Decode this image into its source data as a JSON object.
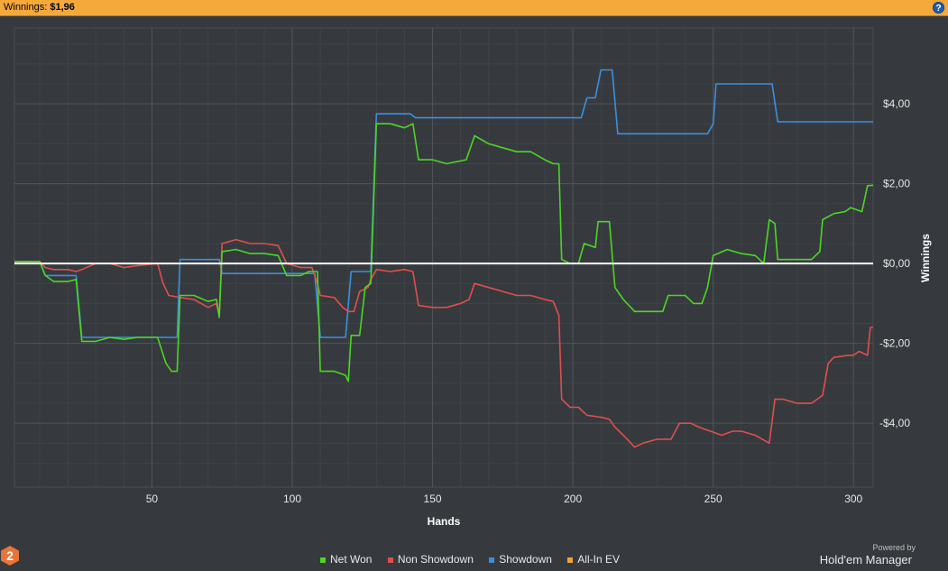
{
  "header": {
    "label": "Winnings:",
    "value": "$1,96",
    "help_glyph": "?"
  },
  "branding": {
    "powered_by": "Powered by",
    "product": "Hold'em Manager",
    "logo_digit": "2"
  },
  "colors": {
    "net_won": "#4cd624",
    "non_showdown": "#df4f4c",
    "showdown": "#3d8fdc",
    "all_in_ev": "#f0a23c",
    "background": "#363a3e",
    "grid": "#4a4e52",
    "zero_line": "#ffffff"
  },
  "chart_data": {
    "type": "line",
    "xlabel": "Hands",
    "ylabel": "Winnings",
    "xlim": [
      1,
      307
    ],
    "ylim": [
      -5.6,
      5.9
    ],
    "xticks": [
      50,
      100,
      150,
      200,
      250,
      300
    ],
    "xtick_labels": [
      "50",
      "100",
      "150",
      "200",
      "250",
      "300"
    ],
    "yticks": [
      4,
      2,
      0,
      -2,
      -4
    ],
    "ytick_labels": [
      "$4,00",
      "$2,00",
      "$0,00",
      "-$2,00",
      "-$4,00"
    ],
    "legend_position": "bottom-center",
    "grid": true,
    "series": [
      {
        "name": "Net Won",
        "color": "#4cd624",
        "points": [
          [
            1,
            0.05
          ],
          [
            10,
            0.05
          ],
          [
            12,
            -0.3
          ],
          [
            15,
            -0.45
          ],
          [
            20,
            -0.45
          ],
          [
            23,
            -0.4
          ],
          [
            25,
            -1.95
          ],
          [
            30,
            -1.95
          ],
          [
            35,
            -1.85
          ],
          [
            40,
            -1.9
          ],
          [
            45,
            -1.85
          ],
          [
            52,
            -1.85
          ],
          [
            55,
            -2.5
          ],
          [
            57,
            -2.7
          ],
          [
            59,
            -2.7
          ],
          [
            60,
            -0.8
          ],
          [
            65,
            -0.8
          ],
          [
            70,
            -0.95
          ],
          [
            73,
            -0.9
          ],
          [
            74,
            -1.35
          ],
          [
            75,
            0.3
          ],
          [
            80,
            0.35
          ],
          [
            85,
            0.25
          ],
          [
            90,
            0.25
          ],
          [
            95,
            0.2
          ],
          [
            98,
            -0.3
          ],
          [
            103,
            -0.3
          ],
          [
            106,
            -0.2
          ],
          [
            109,
            -0.2
          ],
          [
            110,
            -2.7
          ],
          [
            115,
            -2.7
          ],
          [
            119,
            -2.8
          ],
          [
            120,
            -2.95
          ],
          [
            121,
            -1.8
          ],
          [
            124,
            -1.8
          ],
          [
            126,
            -0.6
          ],
          [
            128,
            -0.5
          ],
          [
            130,
            3.5
          ],
          [
            135,
            3.5
          ],
          [
            140,
            3.4
          ],
          [
            143,
            3.5
          ],
          [
            145,
            2.6
          ],
          [
            150,
            2.6
          ],
          [
            155,
            2.5
          ],
          [
            162,
            2.6
          ],
          [
            165,
            3.2
          ],
          [
            170,
            3.0
          ],
          [
            175,
            2.9
          ],
          [
            180,
            2.8
          ],
          [
            185,
            2.8
          ],
          [
            190,
            2.6
          ],
          [
            193,
            2.5
          ],
          [
            195,
            2.5
          ],
          [
            196,
            0.1
          ],
          [
            199,
            0.0
          ],
          [
            202,
            0.0
          ],
          [
            204,
            0.5
          ],
          [
            208,
            0.4
          ],
          [
            209,
            1.05
          ],
          [
            213,
            1.05
          ],
          [
            215,
            -0.6
          ],
          [
            218,
            -0.9
          ],
          [
            222,
            -1.2
          ],
          [
            225,
            -1.2
          ],
          [
            228,
            -1.2
          ],
          [
            232,
            -1.2
          ],
          [
            234,
            -0.8
          ],
          [
            240,
            -0.8
          ],
          [
            243,
            -1.0
          ],
          [
            246,
            -1.0
          ],
          [
            248,
            -0.6
          ],
          [
            250,
            0.2
          ],
          [
            255,
            0.35
          ],
          [
            260,
            0.25
          ],
          [
            265,
            0.2
          ],
          [
            268,
            0.0
          ],
          [
            270,
            1.1
          ],
          [
            272,
            1.0
          ],
          [
            273,
            0.1
          ],
          [
            278,
            0.1
          ],
          [
            285,
            0.1
          ],
          [
            288,
            0.3
          ],
          [
            289,
            1.1
          ],
          [
            293,
            1.25
          ],
          [
            297,
            1.3
          ],
          [
            299,
            1.4
          ],
          [
            303,
            1.3
          ],
          [
            305,
            1.95
          ],
          [
            307,
            1.96
          ]
        ]
      },
      {
        "name": "Non Showdown",
        "color": "#df4f4c",
        "points": [
          [
            1,
            0.05
          ],
          [
            10,
            0.05
          ],
          [
            12,
            -0.1
          ],
          [
            15,
            -0.15
          ],
          [
            20,
            -0.15
          ],
          [
            23,
            -0.2
          ],
          [
            25,
            -0.15
          ],
          [
            30,
            0.0
          ],
          [
            35,
            0.0
          ],
          [
            40,
            -0.1
          ],
          [
            45,
            -0.05
          ],
          [
            52,
            0.0
          ],
          [
            54,
            -0.5
          ],
          [
            56,
            -0.8
          ],
          [
            60,
            -0.85
          ],
          [
            65,
            -0.9
          ],
          [
            70,
            -1.1
          ],
          [
            73,
            -1.0
          ],
          [
            74,
            -1.3
          ],
          [
            75,
            0.5
          ],
          [
            80,
            0.6
          ],
          [
            85,
            0.5
          ],
          [
            90,
            0.5
          ],
          [
            95,
            0.45
          ],
          [
            98,
            0.0
          ],
          [
            103,
            -0.1
          ],
          [
            107,
            -0.1
          ],
          [
            109,
            -0.5
          ],
          [
            110,
            -0.8
          ],
          [
            115,
            -0.85
          ],
          [
            118,
            -1.1
          ],
          [
            120,
            -1.2
          ],
          [
            122,
            -1.2
          ],
          [
            124,
            -0.7
          ],
          [
            127,
            -0.6
          ],
          [
            128,
            -0.4
          ],
          [
            130,
            -0.15
          ],
          [
            135,
            -0.2
          ],
          [
            140,
            -0.15
          ],
          [
            143,
            -0.2
          ],
          [
            145,
            -1.05
          ],
          [
            150,
            -1.1
          ],
          [
            155,
            -1.1
          ],
          [
            160,
            -1.0
          ],
          [
            163,
            -0.9
          ],
          [
            165,
            -0.5
          ],
          [
            170,
            -0.6
          ],
          [
            175,
            -0.7
          ],
          [
            180,
            -0.8
          ],
          [
            185,
            -0.8
          ],
          [
            190,
            -0.9
          ],
          [
            193,
            -0.95
          ],
          [
            195,
            -1.3
          ],
          [
            196,
            -3.4
          ],
          [
            199,
            -3.6
          ],
          [
            202,
            -3.6
          ],
          [
            205,
            -3.8
          ],
          [
            210,
            -3.85
          ],
          [
            213,
            -3.9
          ],
          [
            215,
            -4.1
          ],
          [
            218,
            -4.3
          ],
          [
            222,
            -4.6
          ],
          [
            225,
            -4.5
          ],
          [
            230,
            -4.4
          ],
          [
            235,
            -4.4
          ],
          [
            238,
            -4.0
          ],
          [
            242,
            -4.0
          ],
          [
            245,
            -4.1
          ],
          [
            249,
            -4.2
          ],
          [
            253,
            -4.3
          ],
          [
            257,
            -4.2
          ],
          [
            260,
            -4.2
          ],
          [
            265,
            -4.3
          ],
          [
            270,
            -4.5
          ],
          [
            272,
            -3.4
          ],
          [
            275,
            -3.4
          ],
          [
            280,
            -3.5
          ],
          [
            285,
            -3.5
          ],
          [
            289,
            -3.3
          ],
          [
            291,
            -2.5
          ],
          [
            293,
            -2.35
          ],
          [
            298,
            -2.3
          ],
          [
            300,
            -2.3
          ],
          [
            302,
            -2.2
          ],
          [
            305,
            -2.3
          ],
          [
            306,
            -1.6
          ],
          [
            307,
            -1.6
          ]
        ]
      },
      {
        "name": "Showdown",
        "color": "#3d8fdc",
        "points": [
          [
            1,
            0.05
          ],
          [
            10,
            0.05
          ],
          [
            12,
            -0.3
          ],
          [
            15,
            -0.3
          ],
          [
            23,
            -0.3
          ],
          [
            25,
            -1.85
          ],
          [
            45,
            -1.85
          ],
          [
            59,
            -1.85
          ],
          [
            60,
            0.1
          ],
          [
            74,
            0.1
          ],
          [
            75,
            -0.25
          ],
          [
            97,
            -0.25
          ],
          [
            98,
            -0.25
          ],
          [
            108,
            -0.25
          ],
          [
            110,
            -1.85
          ],
          [
            119,
            -1.85
          ],
          [
            121,
            -0.2
          ],
          [
            128,
            -0.2
          ],
          [
            130,
            3.75
          ],
          [
            142,
            3.75
          ],
          [
            144,
            3.65
          ],
          [
            195,
            3.65
          ],
          [
            197,
            3.65
          ],
          [
            203,
            3.65
          ],
          [
            205,
            4.15
          ],
          [
            208,
            4.15
          ],
          [
            210,
            4.85
          ],
          [
            214,
            4.85
          ],
          [
            216,
            3.25
          ],
          [
            230,
            3.25
          ],
          [
            248,
            3.25
          ],
          [
            250,
            3.5
          ],
          [
            251,
            4.5
          ],
          [
            260,
            4.5
          ],
          [
            265,
            4.5
          ],
          [
            271,
            4.5
          ],
          [
            273,
            3.55
          ],
          [
            290,
            3.55
          ],
          [
            307,
            3.55
          ]
        ]
      },
      {
        "name": "All-In EV",
        "color": "#f0a23c",
        "points": []
      }
    ]
  }
}
